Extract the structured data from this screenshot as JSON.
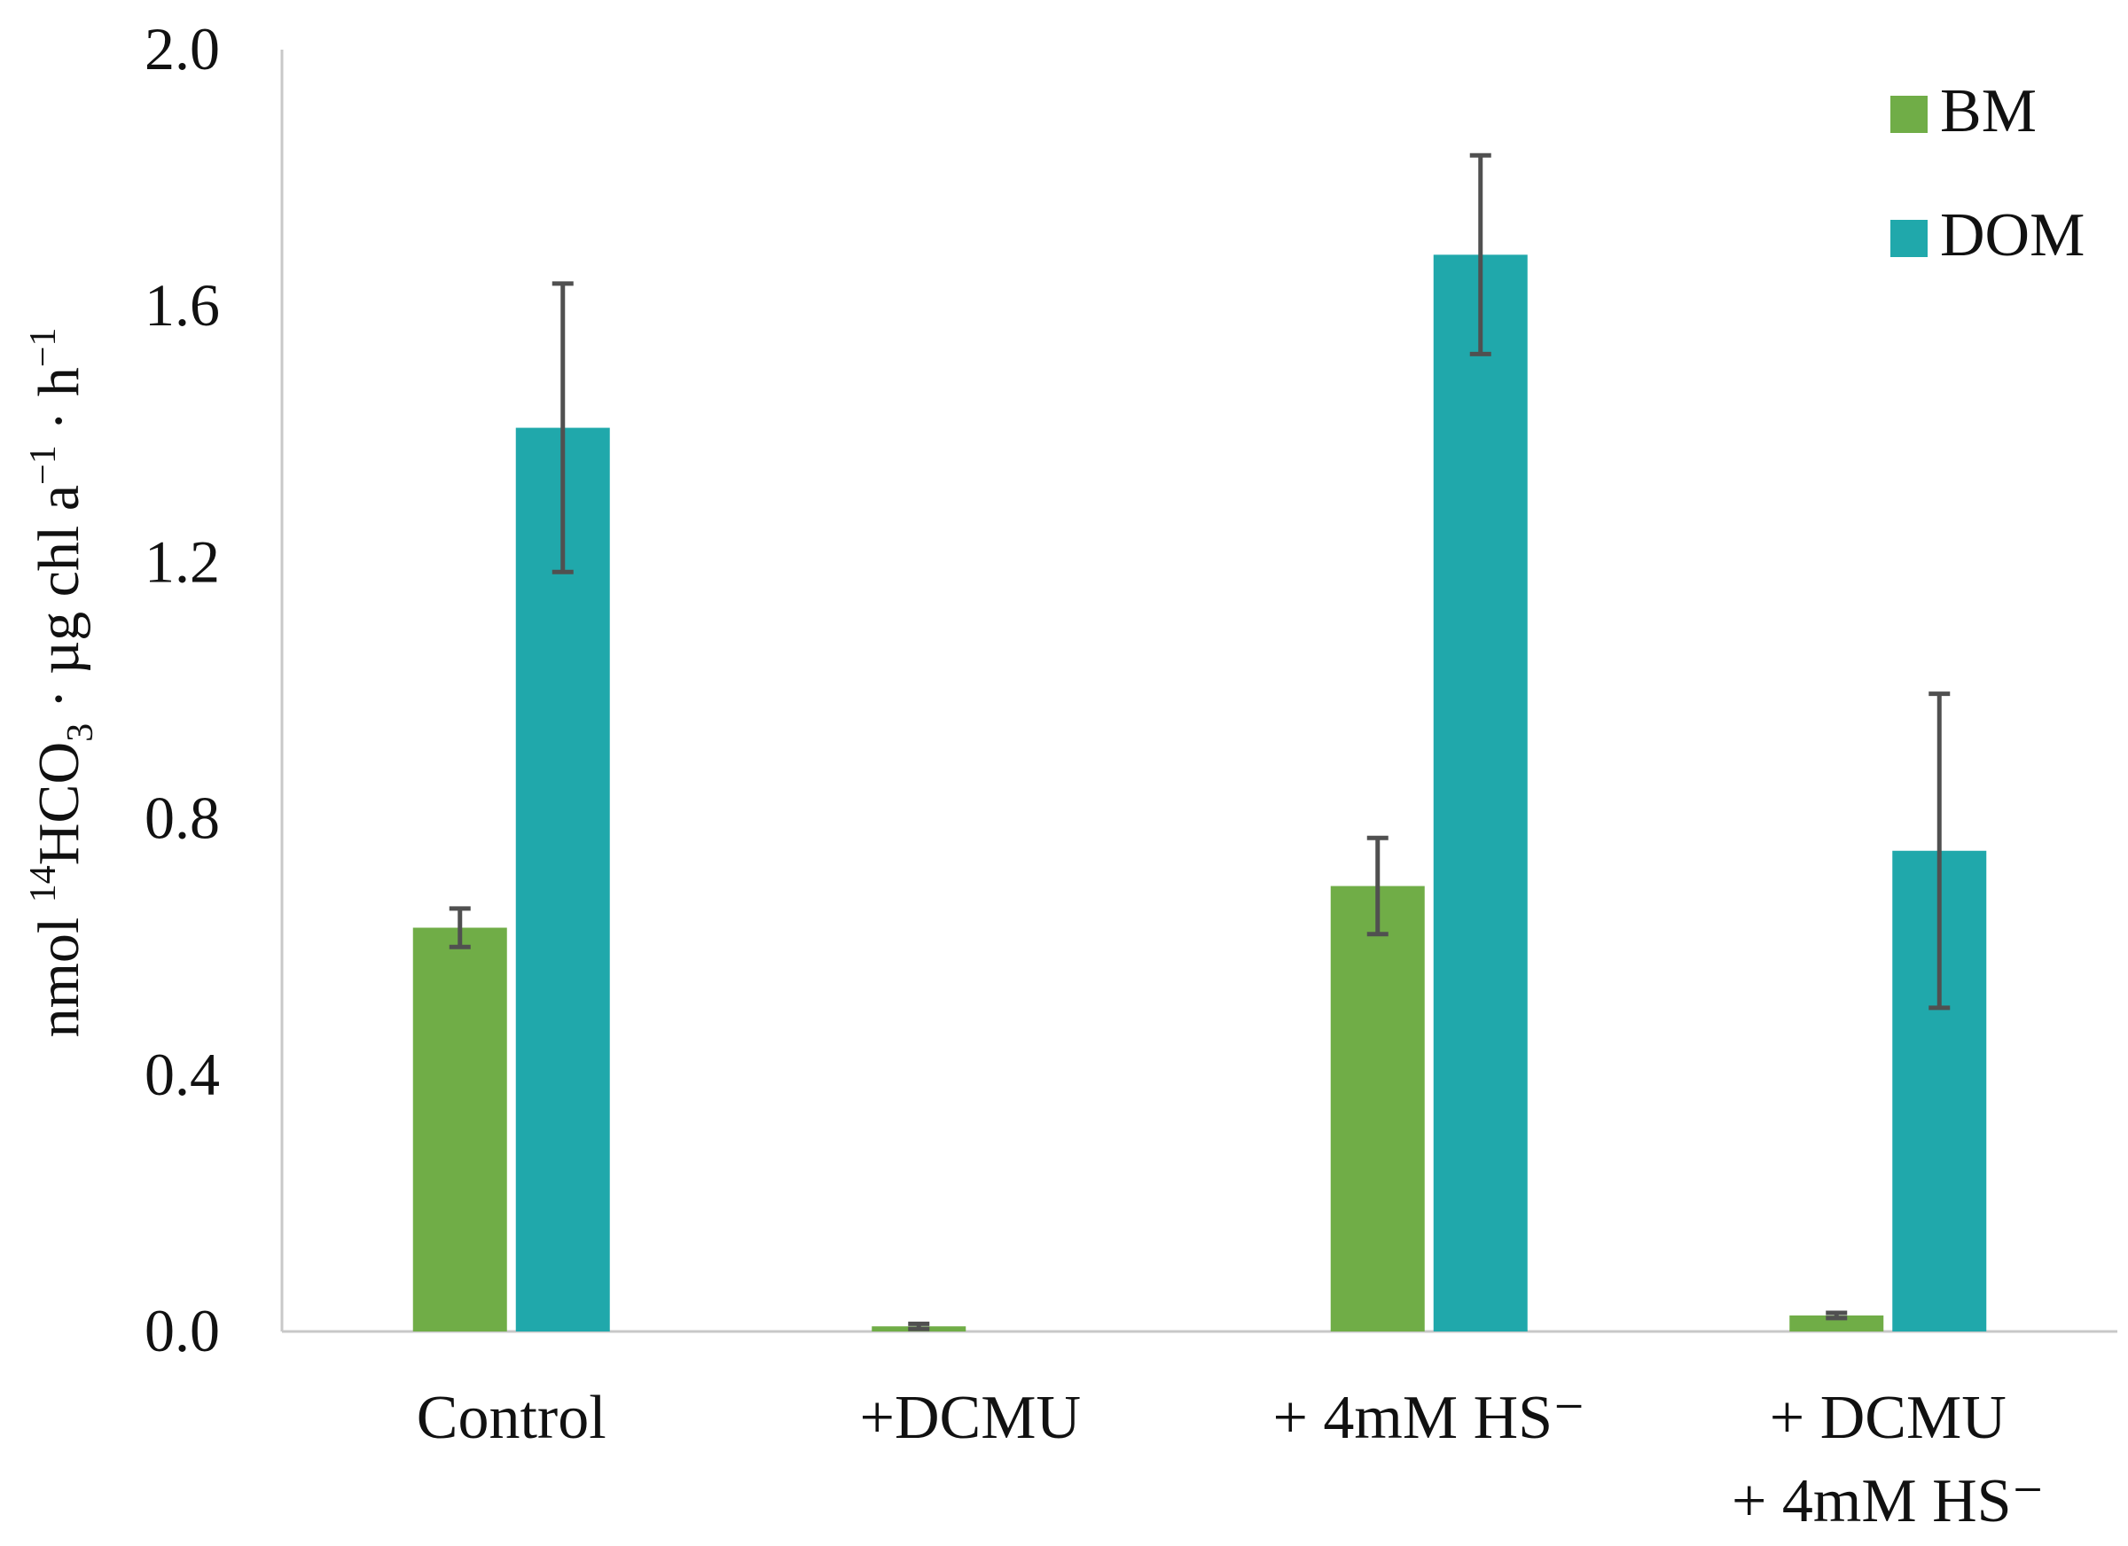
{
  "chart_data": {
    "type": "bar",
    "title": "",
    "xlabel": "",
    "ylabel": {
      "prefix": "nmol ",
      "sup_isotope": "14",
      "compound": "HCO",
      "sub": "3",
      "mid": " · µg chl a",
      "sup1": "−1",
      "unit": " · h",
      "sup2": "−1"
    },
    "ylim": [
      0,
      2.0
    ],
    "yticks": [
      "0.0",
      "0.4",
      "0.8",
      "1.2",
      "1.6",
      "2.0"
    ],
    "ytick_values": [
      0,
      0.4,
      0.8,
      1.2,
      1.6,
      2.0
    ],
    "grid": false,
    "legend_position": "top-right",
    "categories": [
      [
        "Control"
      ],
      [
        "+DCMU"
      ],
      [
        "+ 4mM HS⁻"
      ],
      [
        "+ DCMU",
        "+ 4mM HS⁻"
      ]
    ],
    "series": [
      {
        "name": "BM",
        "color": "#70ad47",
        "values": [
          0.63,
          0.008,
          0.695,
          0.025
        ],
        "errors": [
          0.03,
          0.004,
          0.075,
          0.004
        ]
      },
      {
        "name": "DOM",
        "color": "#20a8ab",
        "values": [
          1.41,
          0.0,
          1.68,
          0.75
        ],
        "errors": [
          0.225,
          0.0,
          0.155,
          0.245
        ]
      }
    ]
  }
}
